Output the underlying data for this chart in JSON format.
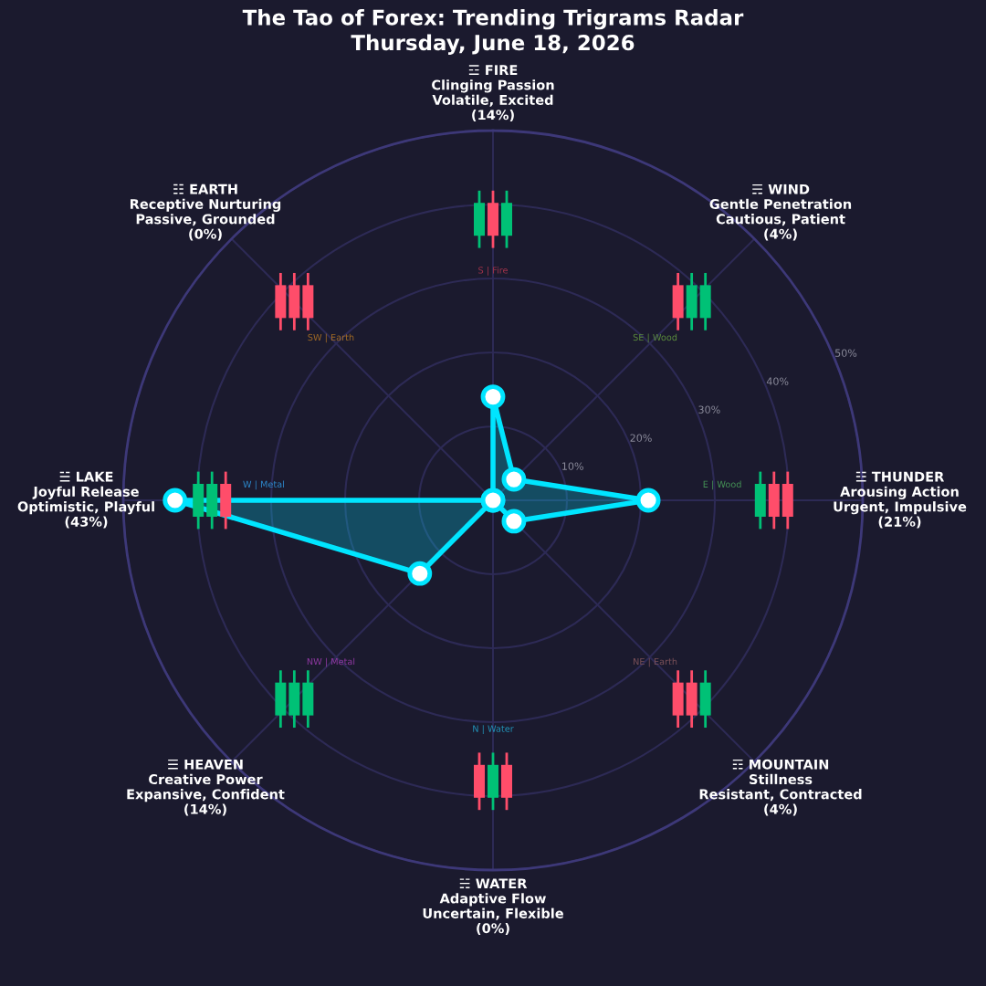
{
  "chart_data": {
    "type": "radar",
    "title": "The Tao of Forex: Trending Trigrams Radar\nThursday, June 18, 2026",
    "categories": [
      "☲ FIRE\nClinging Passion\nVolatile, Excited\n(14%)",
      "☴ WIND\nGentle Penetration\nCautious, Patient\n(4%)",
      "☳ THUNDER\nArousing Action\nUrgent, Impulsive\n(21%)",
      "☶ MOUNTAIN\nStillness\nResistant, Contracted\n(4%)",
      "☵ WATER\nAdaptive Flow\nUncertain, Flexible\n(0%)",
      "☰ HEAVEN\nCreative Power\nExpansive, Confident\n(14%)",
      "☱ LAKE\nJoyful Release\nOptimistic, Playful\n(43%)",
      "☷ EARTH\nReceptive Nurturing\nPassive, Grounded\n(0%)"
    ],
    "series": [
      {
        "color": "#00e5ff",
        "values": [
          14,
          4,
          21,
          4,
          0,
          14,
          43,
          0
        ]
      }
    ],
    "ylim": [
      0,
      50
    ],
    "yticks": [
      {
        "value": 10,
        "label": "10%"
      },
      {
        "value": 20,
        "label": "20%"
      },
      {
        "value": 30,
        "label": "30%"
      },
      {
        "value": 40,
        "label": "40%"
      },
      {
        "value": 50,
        "label": "50%"
      }
    ],
    "annotations": [
      "S | Fire",
      "SE | Wood",
      "E | Wood",
      "NE | Earth",
      "N | Water",
      "NW | Metal",
      "W | Metal",
      "SW | Earth"
    ],
    "grid": true,
    "marker": "circle",
    "line_style": "solid"
  }
}
